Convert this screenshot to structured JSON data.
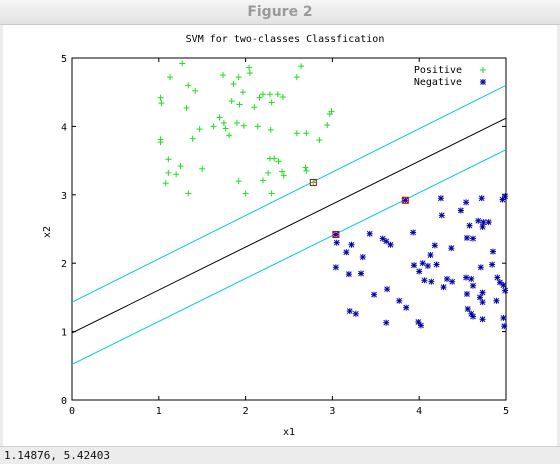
{
  "window": {
    "title": "Figure 2"
  },
  "status": {
    "coords": "1.14876,  5.42403"
  },
  "colors": {
    "positive": "#22dd22",
    "negative": "#0000aa",
    "margin": "#00c8e6",
    "boundary": "#000000",
    "support_vector": "#cc0000"
  },
  "chart_data": {
    "type": "scatter",
    "title": "SVM for two-classes Classfication",
    "xlabel": "x1",
    "ylabel": "x2",
    "xlim": [
      0,
      5
    ],
    "ylim": [
      0,
      5
    ],
    "xticks": [
      "0",
      "1",
      "2",
      "3",
      "4",
      "5"
    ],
    "yticks": [
      "0",
      "1",
      "2",
      "3",
      "4",
      "5"
    ],
    "grid": false,
    "legend_position": "top-right",
    "series": [
      {
        "name": "Positive",
        "marker": "+",
        "points": [
          [
            1.27,
            4.92
          ],
          [
            1.13,
            4.72
          ],
          [
            1.34,
            4.6
          ],
          [
            1.42,
            4.52
          ],
          [
            1.02,
            4.42
          ],
          [
            1.03,
            4.34
          ],
          [
            1.32,
            4.27
          ],
          [
            1.74,
            4.75
          ],
          [
            1.92,
            4.72
          ],
          [
            2.04,
            4.86
          ],
          [
            2.05,
            4.78
          ],
          [
            1.86,
            4.62
          ],
          [
            1.97,
            4.5
          ],
          [
            1.84,
            4.37
          ],
          [
            1.93,
            4.32
          ],
          [
            2.16,
            4.42
          ],
          [
            2.2,
            4.47
          ],
          [
            2.28,
            4.47
          ],
          [
            2.37,
            4.47
          ],
          [
            2.43,
            4.43
          ],
          [
            2.1,
            4.28
          ],
          [
            2.3,
            4.35
          ],
          [
            2.64,
            4.88
          ],
          [
            2.59,
            4.72
          ],
          [
            1.7,
            4.13
          ],
          [
            1.75,
            4.05
          ],
          [
            1.63,
            4.0
          ],
          [
            1.77,
            3.97
          ],
          [
            1.9,
            4.05
          ],
          [
            1.98,
            4.01
          ],
          [
            1.81,
            3.87
          ],
          [
            1.47,
            3.96
          ],
          [
            1.39,
            3.82
          ],
          [
            1.02,
            3.81
          ],
          [
            1.02,
            3.77
          ],
          [
            2.14,
            4.0
          ],
          [
            2.29,
            3.95
          ],
          [
            2.59,
            3.9
          ],
          [
            2.7,
            3.9
          ],
          [
            2.85,
            3.8
          ],
          [
            2.97,
            4.18
          ],
          [
            2.99,
            4.22
          ],
          [
            2.94,
            4.02
          ],
          [
            1.11,
            3.52
          ],
          [
            1.25,
            3.42
          ],
          [
            1.11,
            3.32
          ],
          [
            1.2,
            3.3
          ],
          [
            1.08,
            3.17
          ],
          [
            1.34,
            3.02
          ],
          [
            1.5,
            3.38
          ],
          [
            2.28,
            3.53
          ],
          [
            2.33,
            3.53
          ],
          [
            2.38,
            3.49
          ],
          [
            2.26,
            3.32
          ],
          [
            2.2,
            3.21
          ],
          [
            2.42,
            3.34
          ],
          [
            2.44,
            3.28
          ],
          [
            2.69,
            3.4
          ],
          [
            2.7,
            3.35
          ],
          [
            1.92,
            3.2
          ],
          [
            2.0,
            3.02
          ],
          [
            2.3,
            3.02
          ],
          [
            2.78,
            3.18
          ]
        ]
      },
      {
        "name": "Negative",
        "marker": "*",
        "points": [
          [
            4.25,
            2.95
          ],
          [
            4.54,
            2.89
          ],
          [
            4.72,
            2.95
          ],
          [
            4.96,
            2.93
          ],
          [
            4.99,
            2.98
          ],
          [
            4.26,
            2.7
          ],
          [
            4.48,
            2.77
          ],
          [
            4.68,
            2.62
          ],
          [
            4.74,
            2.6
          ],
          [
            4.8,
            2.6
          ],
          [
            4.58,
            2.55
          ],
          [
            4.73,
            2.53
          ],
          [
            4.55,
            2.37
          ],
          [
            4.62,
            2.36
          ],
          [
            3.84,
            2.92
          ],
          [
            3.04,
            2.42
          ],
          [
            3.05,
            2.3
          ],
          [
            3.22,
            2.27
          ],
          [
            3.35,
            2.09
          ],
          [
            3.16,
            2.16
          ],
          [
            3.43,
            2.43
          ],
          [
            3.58,
            2.36
          ],
          [
            3.62,
            2.32
          ],
          [
            3.67,
            2.27
          ],
          [
            3.93,
            2.45
          ],
          [
            4.13,
            2.12
          ],
          [
            4.18,
            2.26
          ],
          [
            4.37,
            2.22
          ],
          [
            3.94,
            1.97
          ],
          [
            4.04,
            2.0
          ],
          [
            4.1,
            1.96
          ],
          [
            4.2,
            1.98
          ],
          [
            4.85,
            2.17
          ],
          [
            4.84,
            1.98
          ],
          [
            4.71,
            1.94
          ],
          [
            3.04,
            1.94
          ],
          [
            3.19,
            1.84
          ],
          [
            3.33,
            1.85
          ],
          [
            3.48,
            1.54
          ],
          [
            3.63,
            1.62
          ],
          [
            3.77,
            1.45
          ],
          [
            3.85,
            1.35
          ],
          [
            4.0,
            1.88
          ],
          [
            4.06,
            1.75
          ],
          [
            4.14,
            1.73
          ],
          [
            4.28,
            1.65
          ],
          [
            4.32,
            1.77
          ],
          [
            4.38,
            1.73
          ],
          [
            4.54,
            1.79
          ],
          [
            4.6,
            1.77
          ],
          [
            4.62,
            1.67
          ],
          [
            4.73,
            1.57
          ],
          [
            4.7,
            1.5
          ],
          [
            4.55,
            1.55
          ],
          [
            4.73,
            1.43
          ],
          [
            4.9,
            1.79
          ],
          [
            4.93,
            1.72
          ],
          [
            4.97,
            1.68
          ],
          [
            4.99,
            1.6
          ],
          [
            4.89,
            1.45
          ],
          [
            4.97,
            1.2
          ],
          [
            4.98,
            1.08
          ],
          [
            4.56,
            1.33
          ],
          [
            4.6,
            1.26
          ],
          [
            4.62,
            1.22
          ],
          [
            4.73,
            1.18
          ],
          [
            3.2,
            1.3
          ],
          [
            3.27,
            1.26
          ],
          [
            3.62,
            1.13
          ],
          [
            3.99,
            1.14
          ],
          [
            4.02,
            1.09
          ]
        ]
      }
    ],
    "support_vectors": [
      [
        2.78,
        3.18
      ],
      [
        3.04,
        2.42
      ],
      [
        3.84,
        2.92
      ]
    ],
    "lines": [
      {
        "role": "upper-margin",
        "x": [
          0,
          5
        ],
        "y": [
          1.43,
          4.6
        ]
      },
      {
        "role": "decision-boundary",
        "x": [
          0,
          5
        ],
        "y": [
          0.98,
          4.12
        ]
      },
      {
        "role": "lower-margin",
        "x": [
          0,
          5
        ],
        "y": [
          0.52,
          3.66
        ]
      }
    ]
  }
}
